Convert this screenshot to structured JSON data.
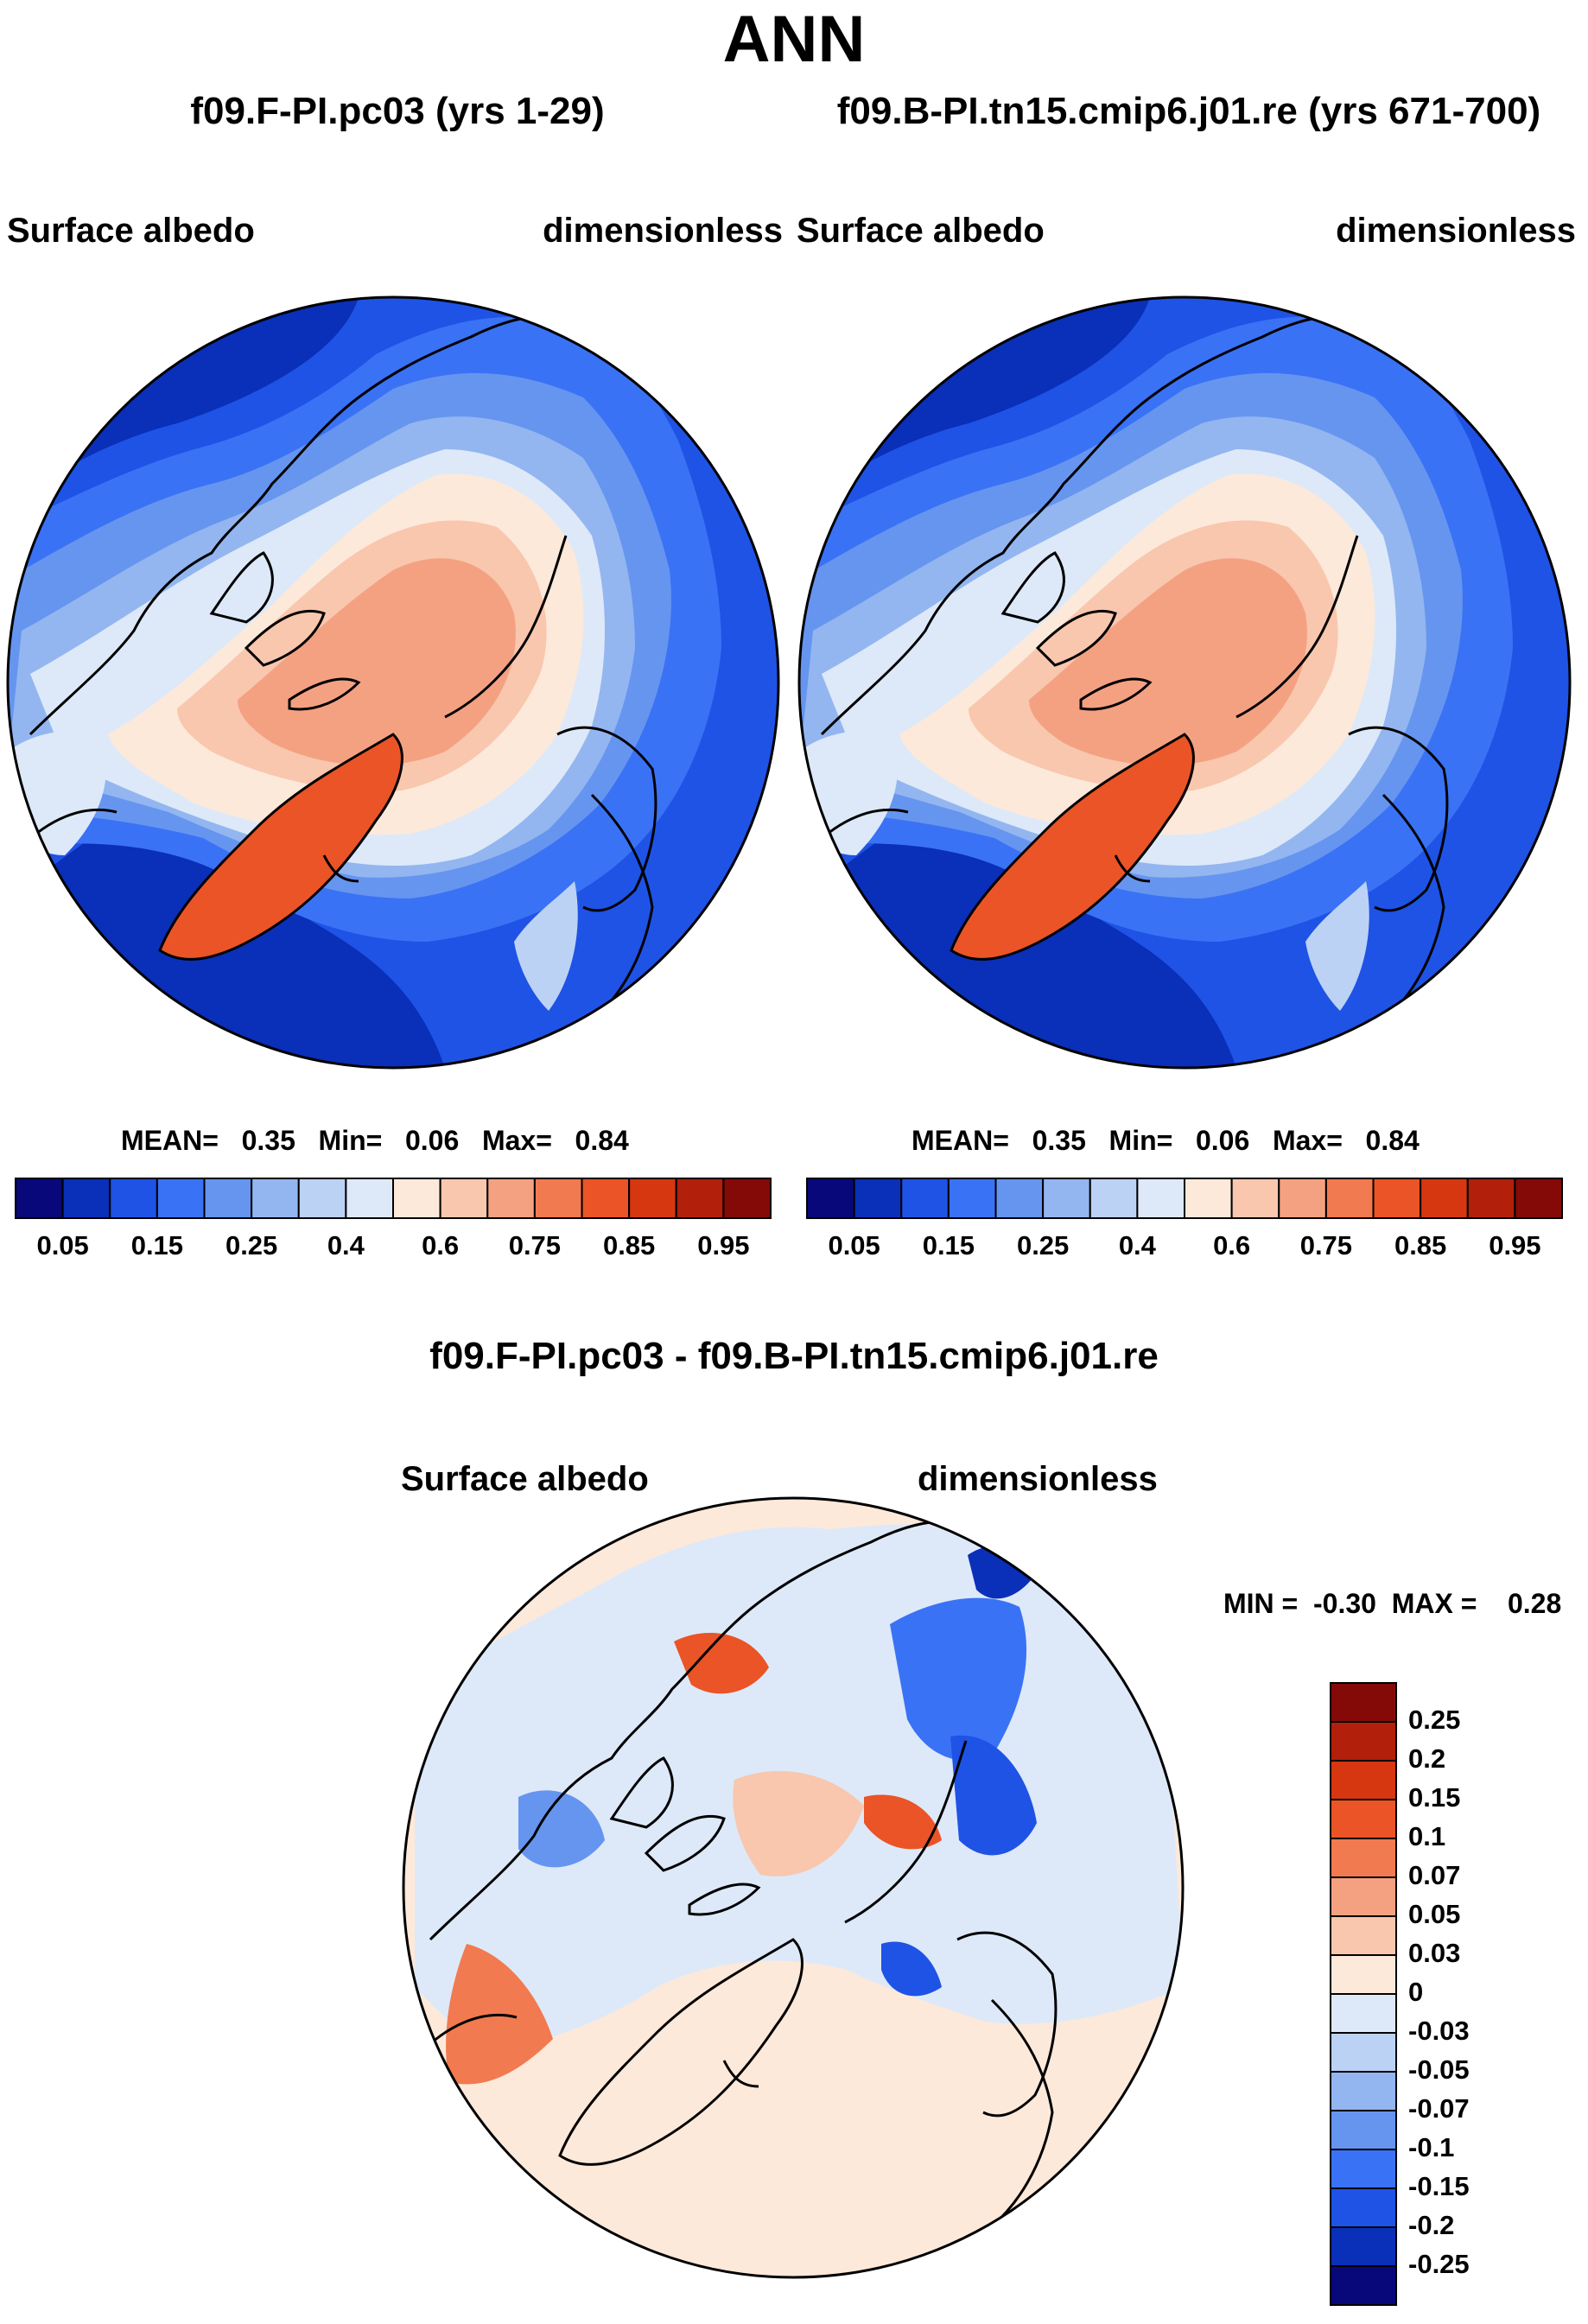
{
  "chart_data": {
    "type": "heatmap",
    "title": "ANN",
    "panels": [
      {
        "id": "panel-left",
        "run_title": "f09.F-PI.pc03 (yrs 1-29)",
        "variable": "Surface albedo",
        "units": "dimensionless",
        "stats": {
          "mean_label": "MEAN=",
          "mean": "0.35",
          "min_label": "Min=",
          "min": "0.06",
          "max_label": "Max=",
          "max": "0.84"
        },
        "colorbar": {
          "orientation": "horizontal",
          "levels": [
            "0.05",
            "0.15",
            "0.25",
            "0.4",
            "0.6",
            "0.75",
            "0.85",
            "0.95"
          ],
          "colors": [
            "#08087a",
            "#0a2fb8",
            "#1e53e6",
            "#3a72f5",
            "#6695f0",
            "#93b6f0",
            "#bcd2f5",
            "#dde9f9",
            "#fde9da",
            "#f8c7ae",
            "#f4a182",
            "#f27a50",
            "#ea5426",
            "#d63711",
            "#b21f0b",
            "#840a08"
          ]
        }
      },
      {
        "id": "panel-right",
        "run_title": "f09.B-PI.tn15.cmip6.j01.re (yrs 671-700)",
        "variable": "Surface albedo",
        "units": "dimensionless",
        "stats": {
          "mean_label": "MEAN=",
          "mean": "0.35",
          "min_label": "Min=",
          "min": "0.06",
          "max_label": "Max=",
          "max": "0.84"
        },
        "colorbar": {
          "orientation": "horizontal",
          "levels": [
            "0.05",
            "0.15",
            "0.25",
            "0.4",
            "0.6",
            "0.75",
            "0.85",
            "0.95"
          ],
          "colors": [
            "#08087a",
            "#0a2fb8",
            "#1e53e6",
            "#3a72f5",
            "#6695f0",
            "#93b6f0",
            "#bcd2f5",
            "#dde9f9",
            "#fde9da",
            "#f8c7ae",
            "#f4a182",
            "#f27a50",
            "#ea5426",
            "#d63711",
            "#b21f0b",
            "#840a08"
          ]
        }
      },
      {
        "id": "panel-diff",
        "run_title": "f09.F-PI.pc03 - f09.B-PI.tn15.cmip6.j01.re",
        "variable": "Surface albedo",
        "units": "dimensionless",
        "stats": {
          "min_label": "MIN =",
          "min": "-0.30",
          "max_label": "MAX =",
          "max": "0.28"
        },
        "colorbar": {
          "orientation": "vertical",
          "levels": [
            "0.25",
            "0.2",
            "0.15",
            "0.1",
            "0.07",
            "0.05",
            "0.03",
            "0",
            "-0.03",
            "-0.05",
            "-0.07",
            "-0.1",
            "-0.15",
            "-0.2",
            "-0.25"
          ],
          "colors": [
            "#840a08",
            "#b21f0b",
            "#d63711",
            "#ea5426",
            "#f27a50",
            "#f4a182",
            "#f8c7ae",
            "#fde9da",
            "#dde9f9",
            "#bcd2f5",
            "#93b6f0",
            "#6695f0",
            "#3a72f5",
            "#1e53e6",
            "#0a2fb8",
            "#08087a"
          ]
        }
      }
    ]
  }
}
